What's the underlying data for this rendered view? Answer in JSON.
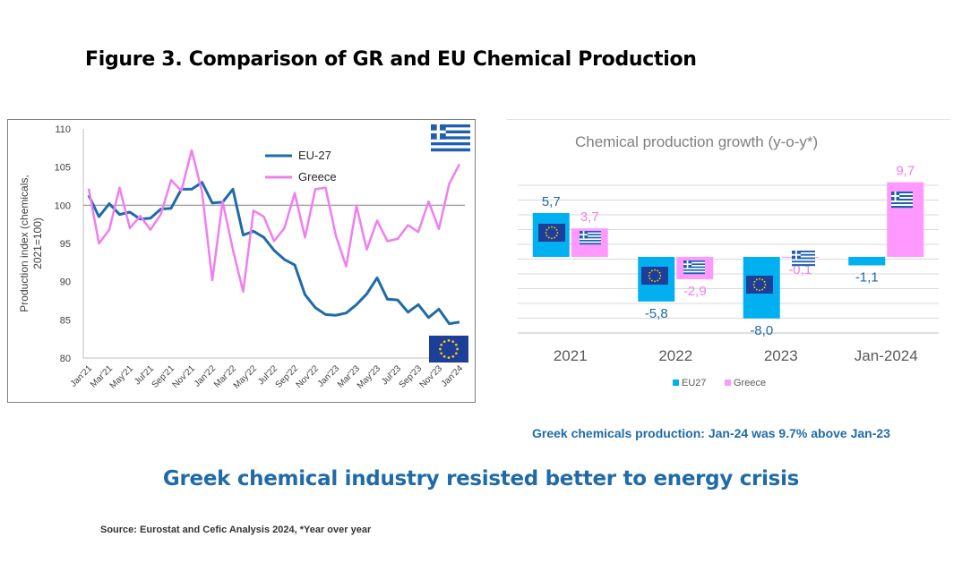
{
  "figure_title": "Figure 3. Comparison of GR and EU Chemical Production",
  "note": "Greek chemicals production: Jan-24 was 9.7% above Jan-23",
  "headline": "Greek chemical industry resisted better to energy crisis",
  "source": "Source: Eurostat and Cefic Analysis 2024, *Year over year",
  "colors": {
    "eu_line": "#1f6ba8",
    "greece_line": "#f07ef0",
    "eu_bar": "#00b0f0",
    "greece_bar": "#ff99ff",
    "accent_text": "#1f6ba8"
  },
  "icons": [
    "greece-flag-icon",
    "eu-flag-icon"
  ],
  "chart_data": [
    {
      "type": "line",
      "ylabel": "Production index (chemicals, 2021=100)",
      "ylim": [
        80,
        110
      ],
      "yticks": [
        80,
        85,
        90,
        95,
        100,
        105,
        110
      ],
      "reference_line": 100,
      "legend_position": "top-center",
      "x_tick_labels": [
        "Jan'21",
        "Mar'21",
        "May'21",
        "Jul'21",
        "Sep'21",
        "Nov'21",
        "Jan'22",
        "Mar'22",
        "May'22",
        "Jul'22",
        "Sep'22",
        "Nov'22",
        "Jan'23",
        "Mar'23",
        "May'23",
        "Jul'23",
        "Sep'23",
        "Nov'23",
        "Jan'24"
      ],
      "series": [
        {
          "name": "EU-27",
          "values": [
            101.3,
            98.5,
            100.2,
            98.8,
            99.1,
            98.2,
            98.3,
            99.5,
            99.6,
            102.1,
            102.1,
            103,
            100.3,
            100.4,
            102.1,
            96.1,
            96.6,
            95.8,
            94.1,
            92.9,
            92.2,
            88.3,
            86.6,
            85.7,
            85.6,
            85.9,
            87,
            88.4,
            90.5,
            87.7,
            87.6,
            86,
            87,
            85.3,
            86.4,
            84.5,
            84.7
          ]
        },
        {
          "name": "Greece",
          "values": [
            102.2,
            95,
            96.8,
            102.3,
            97,
            98.6,
            96.8,
            98.8,
            103.3,
            101.9,
            107.2,
            101.8,
            90.2,
            100.5,
            94.2,
            88.7,
            99.3,
            98.5,
            95.3,
            97,
            101.6,
            95.8,
            102.1,
            102.3,
            96,
            92,
            99.9,
            94.2,
            98,
            95.3,
            95.6,
            97.4,
            96.5,
            100.5,
            96.9,
            102.8,
            105.4
          ]
        }
      ]
    },
    {
      "type": "bar",
      "title": "Chemical production growth (y-o-y*)",
      "categories": [
        "2021",
        "2022",
        "2023",
        "Jan-2024"
      ],
      "ylim": [
        -10,
        12
      ],
      "legend_position": "bottom",
      "series": [
        {
          "name": "EU27",
          "values": [
            5.7,
            -5.8,
            -8.0,
            -1.1
          ],
          "labels": [
            "5,7",
            "-5,8",
            "-8,0",
            "-1,1"
          ]
        },
        {
          "name": "Greece",
          "values": [
            3.7,
            -2.9,
            -0.1,
            9.7
          ],
          "labels": [
            "3,7",
            "-2,9",
            "-0,1",
            "9,7"
          ]
        }
      ]
    }
  ]
}
